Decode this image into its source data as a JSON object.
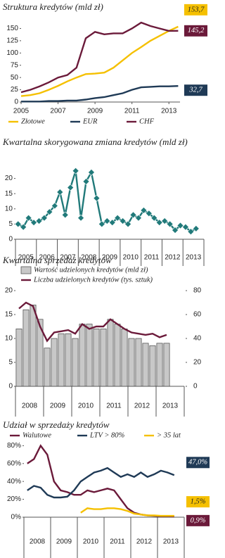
{
  "chart_data": [
    {
      "type": "line",
      "title": "Struktura kredytów (mld zł)",
      "x": [
        2005,
        2005.5,
        2006,
        2006.5,
        2007,
        2007.5,
        2008,
        2008.5,
        2009,
        2009.5,
        2010,
        2010.5,
        2011,
        2011.5,
        2012,
        2012.5,
        2013,
        2013.5
      ],
      "xlim": [
        2005,
        2013.6
      ],
      "xticks": [
        2005,
        2007,
        2009,
        2011,
        2013
      ],
      "ylim": [
        0,
        165
      ],
      "yticks": [
        0,
        25,
        50,
        75,
        100,
        125,
        150
      ],
      "series": [
        {
          "name": "Złotowe",
          "color": "#f5c000",
          "values": [
            12,
            14,
            18,
            25,
            33,
            42,
            50,
            57,
            58,
            60,
            70,
            85,
            100,
            112,
            125,
            135,
            145,
            153.7
          ],
          "value_labels": [
            null,
            null,
            null,
            null,
            null,
            null,
            null,
            null,
            null,
            null,
            null,
            null,
            null,
            null,
            null,
            null,
            null,
            "153,7"
          ]
        },
        {
          "name": "EUR",
          "color": "#1f3a56",
          "values": [
            1,
            1,
            1,
            2,
            2,
            3,
            3,
            5,
            8,
            10,
            14,
            18,
            25,
            30,
            31,
            32,
            32,
            32.7
          ],
          "value_labels": [
            null,
            null,
            null,
            null,
            null,
            null,
            null,
            null,
            null,
            null,
            null,
            null,
            null,
            null,
            null,
            null,
            null,
            "32,7"
          ]
        },
        {
          "name": "CHF",
          "color": "#6b1a3a",
          "values": [
            20,
            25,
            32,
            40,
            50,
            55,
            70,
            130,
            143,
            138,
            140,
            140,
            150,
            162,
            155,
            150,
            145,
            145.2
          ],
          "value_labels": [
            null,
            null,
            null,
            null,
            null,
            null,
            null,
            null,
            null,
            null,
            null,
            null,
            null,
            null,
            null,
            null,
            null,
            "145,2"
          ]
        }
      ]
    },
    {
      "type": "line",
      "title": "Kwartalna skorygowana zmiana kredytów (mld zł)",
      "x": [
        2005.125,
        2005.375,
        2005.625,
        2005.875,
        2006.125,
        2006.375,
        2006.625,
        2006.875,
        2007.125,
        2007.375,
        2007.625,
        2007.875,
        2008.125,
        2008.375,
        2008.625,
        2008.875,
        2009.125,
        2009.375,
        2009.625,
        2009.875,
        2010.125,
        2010.375,
        2010.625,
        2010.875,
        2011.125,
        2011.375,
        2011.625,
        2011.875,
        2012.125,
        2012.375,
        2012.625,
        2012.875,
        2013.125,
        2013.375,
        2013.625
      ],
      "xlim": [
        2005,
        2014
      ],
      "xticks": [
        {
          "value": 2005.5,
          "label": "2005"
        },
        {
          "value": 2006.5,
          "label": "2006"
        },
        {
          "value": 2007.5,
          "label": "2007"
        },
        {
          "value": 2008.5,
          "label": "2008"
        },
        {
          "value": 2009.5,
          "label": "2009"
        },
        {
          "value": 2010.5,
          "label": "2010"
        },
        {
          "value": 2011.5,
          "label": "2011"
        },
        {
          "value": 2012.5,
          "label": "2012"
        },
        {
          "value": 2013.5,
          "label": "2013"
        }
      ],
      "ylim": [
        0,
        25
      ],
      "yticks": [
        0,
        5,
        10,
        15,
        20
      ],
      "series": [
        {
          "color": "#217a7a",
          "marker": "diamond",
          "values": [
            5,
            4,
            7,
            5.5,
            6,
            7,
            9,
            11,
            15.5,
            8,
            17,
            22.5,
            7,
            19,
            22,
            13.5,
            5,
            6,
            5.5,
            7,
            6,
            5,
            8,
            7,
            9.5,
            8.5,
            7,
            5.5,
            6,
            5,
            3,
            4.5,
            4,
            2.5,
            3.5
          ]
        }
      ]
    },
    {
      "type": "combo",
      "title": "Kwartalna sprzedaż kredytów",
      "x": [
        2008.125,
        2008.375,
        2008.625,
        2008.875,
        2009.125,
        2009.375,
        2009.625,
        2009.875,
        2010.125,
        2010.375,
        2010.625,
        2010.875,
        2011.125,
        2011.375,
        2011.625,
        2011.875,
        2012.125,
        2012.375,
        2012.625,
        2012.875,
        2013.125,
        2013.375
      ],
      "xlim": [
        2008,
        2014
      ],
      "xticks": [
        {
          "value": 2008.5,
          "label": "2008"
        },
        {
          "value": 2009.5,
          "label": "2009"
        },
        {
          "value": 2010.5,
          "label": "2010"
        },
        {
          "value": 2011.5,
          "label": "2011"
        },
        {
          "value": 2012.5,
          "label": "2012"
        },
        {
          "value": 2013.5,
          "label": "2013"
        }
      ],
      "ylim": [
        0,
        20
      ],
      "yticks": [
        0,
        5,
        10,
        15,
        20
      ],
      "y2lim": [
        0,
        80
      ],
      "y2ticks": [
        0,
        20,
        40,
        60,
        80
      ],
      "series": [
        {
          "name": "Wartość udzielonych kredytów (mld zł)",
          "type": "bar",
          "color": "#c8c8c8",
          "values": [
            12,
            16,
            17,
            14,
            8,
            10,
            11,
            11,
            10,
            13,
            13,
            12,
            12,
            14,
            13,
            12,
            10,
            10,
            9,
            8.5,
            9,
            9
          ]
        },
        {
          "name": "Liczba udzielonych kredytów (tys. sztuk)",
          "type": "line",
          "axis": "y2",
          "color": "#6b1a3a",
          "values": [
            65,
            70,
            67,
            50,
            38,
            45,
            46,
            47,
            44,
            52,
            48,
            50,
            50,
            56,
            52,
            48,
            45,
            44,
            43,
            44,
            41,
            43
          ]
        }
      ]
    },
    {
      "type": "line",
      "title": "Udział w sprzedaży kredytów",
      "x": [
        2008.125,
        2008.375,
        2008.625,
        2008.875,
        2009.125,
        2009.375,
        2009.625,
        2009.875,
        2010.125,
        2010.375,
        2010.625,
        2010.875,
        2011.125,
        2011.375,
        2011.625,
        2011.875,
        2012.125,
        2012.375,
        2012.625,
        2012.875,
        2013.125,
        2013.375,
        2013.625
      ],
      "xlim": [
        2008,
        2014
      ],
      "xticks": [
        {
          "value": 2008.5,
          "label": "2008"
        },
        {
          "value": 2009.5,
          "label": "2009"
        },
        {
          "value": 2010.5,
          "label": "2010"
        },
        {
          "value": 2011.5,
          "label": "2011"
        },
        {
          "value": 2012.5,
          "label": "2012"
        },
        {
          "value": 2013.5,
          "label": "2013"
        }
      ],
      "ylim": [
        0,
        85
      ],
      "yticks": [
        {
          "value": 0,
          "label": "0%"
        },
        {
          "value": 20,
          "label": "20%"
        },
        {
          "value": 40,
          "label": "40%"
        },
        {
          "value": 60,
          "label": "60%"
        },
        {
          "value": 80,
          "label": "80%"
        }
      ],
      "series": [
        {
          "name": "Walutowe",
          "color": "#6b1a3a",
          "values": [
            60,
            65,
            80,
            70,
            40,
            30,
            28,
            25,
            25,
            30,
            28,
            30,
            32,
            30,
            20,
            10,
            5,
            3,
            2,
            1.5,
            1,
            1,
            0.9
          ],
          "value_labels": [
            null,
            null,
            null,
            null,
            null,
            null,
            null,
            null,
            null,
            null,
            null,
            null,
            null,
            null,
            null,
            null,
            null,
            null,
            null,
            null,
            null,
            null,
            "0,9%"
          ]
        },
        {
          "name": "LTV > 80%",
          "color": "#1f3a56",
          "values": [
            30,
            35,
            33,
            25,
            22,
            22,
            23,
            30,
            40,
            45,
            50,
            52,
            55,
            50,
            45,
            48,
            45,
            50,
            45,
            48,
            52,
            50,
            47
          ],
          "value_labels": [
            null,
            null,
            null,
            null,
            null,
            null,
            null,
            null,
            null,
            null,
            null,
            null,
            null,
            null,
            null,
            null,
            null,
            null,
            null,
            null,
            null,
            null,
            "47,0%"
          ]
        },
        {
          "name": "> 35 lat",
          "color": "#f5c000",
          "values": [
            null,
            null,
            null,
            null,
            null,
            null,
            null,
            null,
            5,
            10,
            9,
            9,
            10,
            10,
            9,
            7,
            4,
            3,
            2,
            2,
            1.5,
            1.5,
            1.5
          ],
          "value_labels": [
            null,
            null,
            null,
            null,
            null,
            null,
            null,
            null,
            null,
            null,
            null,
            null,
            null,
            null,
            null,
            null,
            null,
            null,
            null,
            null,
            null,
            null,
            "1,5%"
          ]
        }
      ]
    }
  ]
}
